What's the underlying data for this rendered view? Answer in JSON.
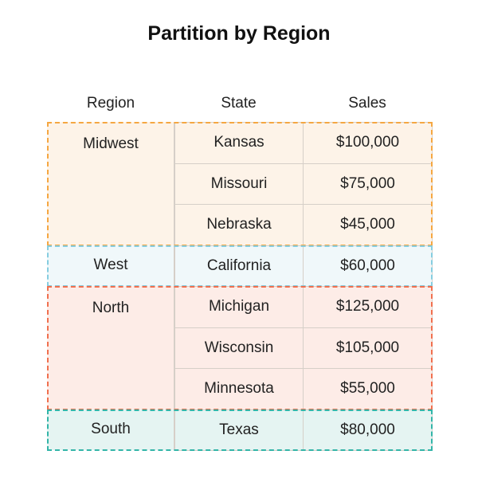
{
  "title": "Partition by Region",
  "headers": [
    "Region",
    "State",
    "Sales"
  ],
  "groups": [
    {
      "region": "Midwest",
      "bg": "#fdf3e8",
      "border": "#f5a742",
      "rows": [
        {
          "state": "Kansas",
          "sales": "$100,000"
        },
        {
          "state": "Missouri",
          "sales": "$75,000"
        },
        {
          "state": "Nebraska",
          "sales": "$45,000"
        }
      ]
    },
    {
      "region": "West",
      "bg": "#f0f8fa",
      "border": "#86cde0",
      "rows": [
        {
          "state": "California",
          "sales": "$60,000"
        }
      ]
    },
    {
      "region": "North",
      "bg": "#fdece7",
      "border": "#f0704f",
      "rows": [
        {
          "state": "Michigan",
          "sales": "$125,000"
        },
        {
          "state": "Wisconsin",
          "sales": "$105,000"
        },
        {
          "state": "Minnesota",
          "sales": "$55,000"
        }
      ]
    },
    {
      "region": "South",
      "bg": "#e5f4f2",
      "border": "#33b5a8",
      "rows": [
        {
          "state": "Texas",
          "sales": "$80,000"
        }
      ]
    }
  ]
}
